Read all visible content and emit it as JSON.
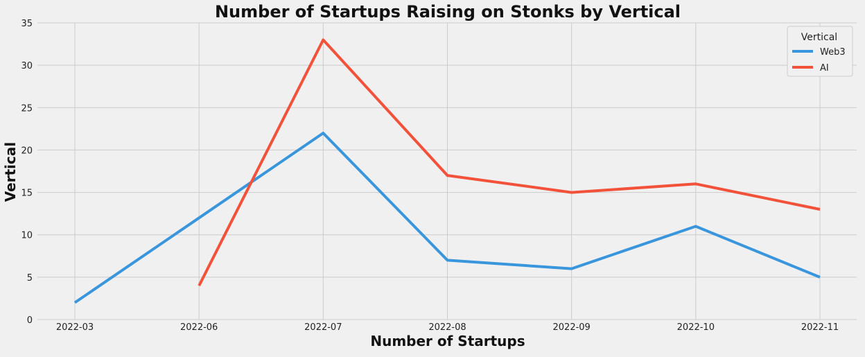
{
  "chart_data": {
    "type": "line",
    "title": "Number of Startups Raising on Stonks by Vertical",
    "xlabel": "Number of Startups",
    "ylabel": "Vertical",
    "categories": [
      "2022-03",
      "2022-06",
      "2022-07",
      "2022-08",
      "2022-09",
      "2022-10",
      "2022-11"
    ],
    "ylim": [
      0,
      35
    ],
    "yticks": [
      0,
      5,
      10,
      15,
      20,
      25,
      30,
      35
    ],
    "grid": true,
    "legend": {
      "title": "Vertical",
      "placement": "top-right"
    },
    "series": [
      {
        "name": "Web3",
        "color": "#3a96dc",
        "values": [
          2,
          12,
          22,
          7,
          6,
          11,
          5
        ]
      },
      {
        "name": "AI",
        "color": "#f2513a",
        "values": [
          null,
          4,
          33,
          17,
          15,
          16,
          13
        ]
      }
    ]
  }
}
